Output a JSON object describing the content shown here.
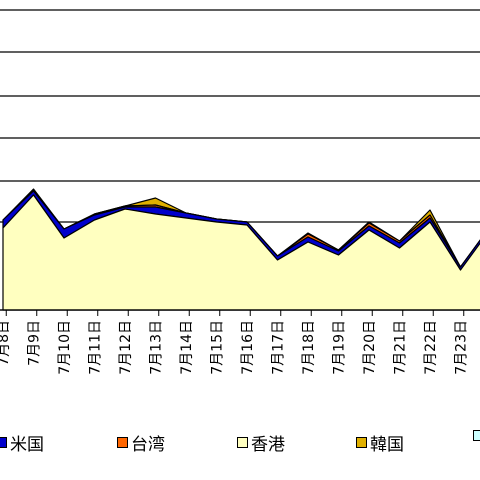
{
  "chart_data": {
    "type": "area",
    "stacked": true,
    "grid": true,
    "legend_position": "bottom",
    "categories": [
      "7月8日",
      "7月9日",
      "7月10日",
      "7月11日",
      "7月12日",
      "7月13日",
      "7月14日",
      "7月15日",
      "7月16日",
      "7月17日",
      "7月18日",
      "7月19日",
      "7月20日",
      "7月21日",
      "7月22日",
      "7月23日"
    ],
    "ylim": [
      0,
      310
    ],
    "gridlines": [
      0,
      88,
      129,
      172,
      214,
      258,
      300
    ],
    "series": [
      {
        "name": "香港",
        "color": "#FFFFC0",
        "values": [
          82,
          115,
          72,
          90,
          101,
          96,
          92,
          88,
          85,
          50,
          68,
          55,
          80,
          62,
          88,
          40
        ]
      },
      {
        "name": "米国",
        "color": "#0000CC",
        "values": [
          8,
          4,
          9,
          5,
          2,
          7,
          5,
          3,
          3,
          4,
          5,
          4,
          4,
          5,
          4,
          3
        ]
      },
      {
        "name": "台湾",
        "color": "#FF6600",
        "values": [
          0,
          1,
          0,
          1,
          1,
          2,
          0,
          0,
          0,
          0,
          3,
          1,
          3,
          2,
          3,
          0
        ]
      },
      {
        "name": "韓国",
        "color": "#E0B000",
        "values": [
          0,
          1,
          0,
          0,
          0,
          7,
          0,
          0,
          0,
          0,
          1,
          0,
          1,
          0,
          5,
          0
        ]
      }
    ],
    "partial_series_legend": {
      "name": "",
      "color": "#CCFFFF"
    }
  }
}
